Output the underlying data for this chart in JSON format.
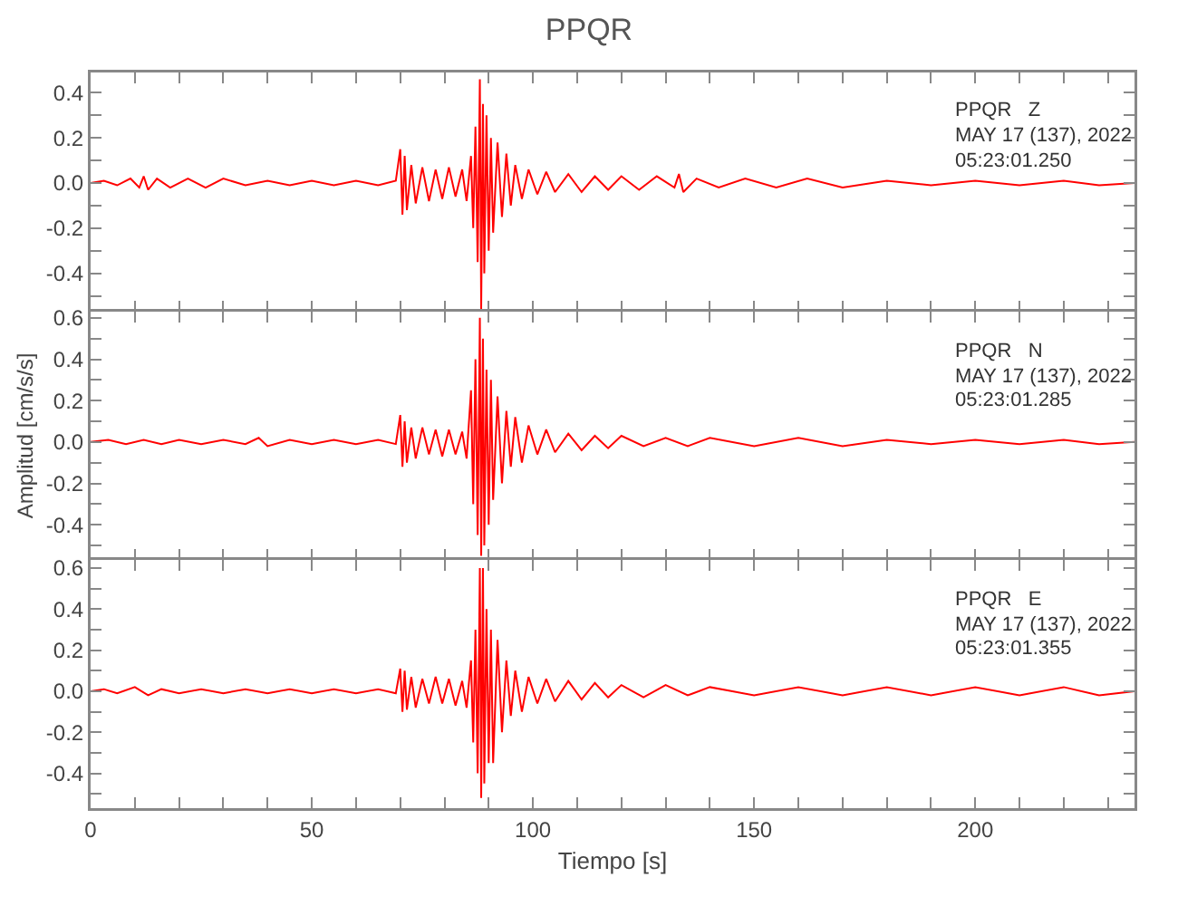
{
  "chart_data": [
    {
      "type": "line",
      "title": "PPQR",
      "annotations": [
        "PPQR   Z",
        "MAY 17 (137), 2022",
        "05:23:01.250"
      ],
      "tick_labels": "y",
      "xlim": [
        0,
        236
      ],
      "xticks": [
        {
          "value": 0,
          "label": null
        },
        {
          "value": 10,
          "label": null
        },
        {
          "value": 20,
          "label": null
        },
        {
          "value": 30,
          "label": null
        },
        {
          "value": 40,
          "label": null
        },
        {
          "value": 50,
          "label": null
        },
        {
          "value": 60,
          "label": null
        },
        {
          "value": 70,
          "label": null
        },
        {
          "value": 80,
          "label": null
        },
        {
          "value": 90,
          "label": null
        },
        {
          "value": 100,
          "label": null
        },
        {
          "value": 110,
          "label": null
        },
        {
          "value": 120,
          "label": null
        },
        {
          "value": 130,
          "label": null
        },
        {
          "value": 140,
          "label": null
        },
        {
          "value": 150,
          "label": null
        },
        {
          "value": 160,
          "label": null
        },
        {
          "value": 170,
          "label": null
        },
        {
          "value": 180,
          "label": null
        },
        {
          "value": 190,
          "label": null
        },
        {
          "value": 200,
          "label": null
        },
        {
          "value": 210,
          "label": null
        },
        {
          "value": 220,
          "label": null
        },
        {
          "value": 230,
          "label": null
        }
      ],
      "ylim": [
        -0.57,
        0.49
      ],
      "yticks": [
        {
          "value": -0.5,
          "label": null
        },
        -0.4,
        {
          "value": -0.3,
          "label": null
        },
        -0.2,
        {
          "value": -0.1,
          "label": null
        },
        {
          "value": 0,
          "label": "0.0"
        },
        {
          "value": 0.1,
          "label": null
        },
        0.2,
        {
          "value": 0.3,
          "label": null
        },
        0.4
      ],
      "series": [
        {
          "color": "#ff0000",
          "x": [
            0,
            3,
            6,
            9,
            11,
            12,
            13,
            15,
            18,
            22,
            26,
            30,
            35,
            40,
            45,
            50,
            55,
            60,
            65,
            69,
            70,
            70.5,
            71,
            71.5,
            72.5,
            73.5,
            75,
            76.5,
            78,
            79.5,
            81,
            82.5,
            84,
            85,
            86,
            86.5,
            87,
            87.5,
            88,
            88.3,
            88.7,
            89,
            89.5,
            90,
            90.5,
            91,
            92,
            93,
            94,
            95,
            96,
            97.5,
            99,
            101,
            103,
            105,
            108,
            111,
            114,
            117,
            120,
            124,
            128,
            132,
            133,
            134,
            137,
            142,
            148,
            155,
            162,
            170,
            180,
            190,
            200,
            210,
            220,
            228,
            236
          ],
          "values": [
            0,
            0.01,
            -0.01,
            0.02,
            -0.02,
            0.03,
            -0.03,
            0.02,
            -0.02,
            0.02,
            -0.02,
            0.02,
            -0.01,
            0.01,
            -0.01,
            0.01,
            -0.01,
            0.01,
            -0.01,
            0.01,
            0.15,
            -0.14,
            0.12,
            -0.12,
            0.08,
            -0.09,
            0.07,
            -0.08,
            0.06,
            -0.07,
            0.07,
            -0.06,
            0.06,
            -0.08,
            0.12,
            -0.2,
            0.25,
            -0.35,
            0.46,
            -0.56,
            0.35,
            -0.4,
            0.3,
            -0.3,
            0.2,
            -0.22,
            0.18,
            -0.15,
            0.13,
            -0.1,
            0.08,
            -0.07,
            0.06,
            -0.05,
            0.05,
            -0.04,
            0.04,
            -0.04,
            0.03,
            -0.03,
            0.03,
            -0.03,
            0.03,
            -0.02,
            0.04,
            -0.04,
            0.02,
            -0.02,
            0.02,
            -0.02,
            0.02,
            -0.02,
            0.01,
            -0.01,
            0.01,
            -0.01,
            0.01,
            -0.01,
            0
          ]
        }
      ]
    },
    {
      "type": "line",
      "ylabel": "Amplitud [cm/s/s]",
      "annotations": [
        "PPQR   N",
        "MAY 17 (137), 2022",
        "05:23:01.285"
      ],
      "tick_labels": "y",
      "xlim": [
        0,
        236
      ],
      "xticks": [
        {
          "value": 0,
          "label": null
        },
        {
          "value": 10,
          "label": null
        },
        {
          "value": 20,
          "label": null
        },
        {
          "value": 30,
          "label": null
        },
        {
          "value": 40,
          "label": null
        },
        {
          "value": 50,
          "label": null
        },
        {
          "value": 60,
          "label": null
        },
        {
          "value": 70,
          "label": null
        },
        {
          "value": 80,
          "label": null
        },
        {
          "value": 90,
          "label": null
        },
        {
          "value": 100,
          "label": null
        },
        {
          "value": 110,
          "label": null
        },
        {
          "value": 120,
          "label": null
        },
        {
          "value": 130,
          "label": null
        },
        {
          "value": 140,
          "label": null
        },
        {
          "value": 150,
          "label": null
        },
        {
          "value": 160,
          "label": null
        },
        {
          "value": 170,
          "label": null
        },
        {
          "value": 180,
          "label": null
        },
        {
          "value": 190,
          "label": null
        },
        {
          "value": 200,
          "label": null
        },
        {
          "value": 210,
          "label": null
        },
        {
          "value": 220,
          "label": null
        },
        {
          "value": 230,
          "label": null
        }
      ],
      "ylim": [
        -0.57,
        0.63
      ],
      "yticks": [
        {
          "value": -0.5,
          "label": null
        },
        -0.4,
        {
          "value": -0.3,
          "label": null
        },
        -0.2,
        {
          "value": -0.1,
          "label": null
        },
        {
          "value": 0,
          "label": "0.0"
        },
        {
          "value": 0.1,
          "label": null
        },
        0.2,
        {
          "value": 0.3,
          "label": null
        },
        0.4,
        {
          "value": 0.5,
          "label": null
        },
        0.6
      ],
      "series": [
        {
          "color": "#ff0000",
          "x": [
            0,
            4,
            8,
            12,
            16,
            20,
            25,
            30,
            35,
            38,
            40,
            45,
            50,
            55,
            60,
            65,
            69,
            70,
            70.5,
            71,
            71.5,
            72.5,
            73.5,
            75,
            76.5,
            78,
            79.5,
            81,
            82.5,
            84,
            85,
            86,
            86.5,
            87,
            87.5,
            88,
            88.3,
            88.7,
            89,
            89.5,
            90,
            90.5,
            91,
            92,
            93,
            94,
            95,
            96,
            97.5,
            99,
            101,
            103,
            105,
            108,
            111,
            114,
            117,
            120,
            125,
            130,
            135,
            140,
            150,
            160,
            170,
            180,
            190,
            200,
            210,
            220,
            228,
            236
          ],
          "values": [
            0,
            0.01,
            -0.01,
            0.01,
            -0.01,
            0.01,
            -0.01,
            0.01,
            -0.01,
            0.02,
            -0.02,
            0.01,
            -0.01,
            0.01,
            -0.01,
            0.01,
            -0.01,
            0.13,
            -0.12,
            0.1,
            -0.1,
            0.07,
            -0.08,
            0.07,
            -0.06,
            0.06,
            -0.07,
            0.06,
            -0.06,
            0.05,
            -0.08,
            0.25,
            -0.3,
            0.4,
            -0.45,
            0.6,
            -0.55,
            0.5,
            -0.5,
            0.35,
            -0.4,
            0.3,
            -0.28,
            0.22,
            -0.2,
            0.15,
            -0.12,
            0.12,
            -0.1,
            0.08,
            -0.06,
            0.06,
            -0.05,
            0.04,
            -0.04,
            0.03,
            -0.03,
            0.03,
            -0.02,
            0.02,
            -0.02,
            0.02,
            -0.02,
            0.02,
            -0.02,
            0.01,
            -0.01,
            0.01,
            -0.01,
            0.01,
            -0.01,
            0
          ]
        }
      ]
    },
    {
      "type": "line",
      "xlabel": "Tiempo [s]",
      "annotations": [
        "PPQR   E",
        "MAY 17 (137), 2022",
        "05:23:01.355"
      ],
      "xlim": [
        0,
        236
      ],
      "xticks": [
        0,
        {
          "value": 10,
          "label": null
        },
        {
          "value": 20,
          "label": null
        },
        {
          "value": 30,
          "label": null
        },
        {
          "value": 40,
          "label": null
        },
        50,
        {
          "value": 60,
          "label": null
        },
        {
          "value": 70,
          "label": null
        },
        {
          "value": 80,
          "label": null
        },
        {
          "value": 90,
          "label": null
        },
        100,
        {
          "value": 110,
          "label": null
        },
        {
          "value": 120,
          "label": null
        },
        {
          "value": 130,
          "label": null
        },
        {
          "value": 140,
          "label": null
        },
        150,
        {
          "value": 160,
          "label": null
        },
        {
          "value": 170,
          "label": null
        },
        {
          "value": 180,
          "label": null
        },
        {
          "value": 190,
          "label": null
        },
        200,
        {
          "value": 210,
          "label": null
        },
        {
          "value": 220,
          "label": null
        },
        {
          "value": 230,
          "label": null
        }
      ],
      "ylim": [
        -0.57,
        0.64
      ],
      "yticks": [
        {
          "value": -0.5,
          "label": null
        },
        -0.4,
        {
          "value": -0.3,
          "label": null
        },
        -0.2,
        {
          "value": -0.1,
          "label": null
        },
        {
          "value": 0,
          "label": "0.0"
        },
        {
          "value": 0.1,
          "label": null
        },
        0.2,
        {
          "value": 0.3,
          "label": null
        },
        0.4,
        {
          "value": 0.5,
          "label": null
        },
        0.6
      ],
      "series": [
        {
          "color": "#ff0000",
          "x": [
            0,
            3,
            6,
            10,
            13,
            16,
            20,
            25,
            30,
            35,
            40,
            45,
            50,
            55,
            60,
            65,
            69,
            70,
            70.5,
            71,
            71.5,
            72.5,
            73.5,
            75,
            76.5,
            78,
            79.5,
            81,
            82.5,
            84,
            85,
            86,
            86.5,
            87,
            87.5,
            88,
            88.3,
            88.7,
            89,
            89.5,
            90,
            90.5,
            91,
            92,
            93,
            94,
            95,
            96,
            97.5,
            99,
            101,
            103,
            105,
            108,
            111,
            114,
            117,
            120,
            125,
            130,
            135,
            140,
            150,
            160,
            170,
            180,
            190,
            200,
            210,
            220,
            228,
            236
          ],
          "values": [
            0,
            0.01,
            -0.01,
            0.02,
            -0.02,
            0.01,
            -0.01,
            0.01,
            -0.01,
            0.01,
            -0.01,
            0.01,
            -0.01,
            0.01,
            -0.01,
            0.01,
            -0.01,
            0.11,
            -0.1,
            0.1,
            -0.09,
            0.07,
            -0.08,
            0.06,
            -0.06,
            0.07,
            -0.06,
            0.06,
            -0.07,
            0.05,
            -0.08,
            0.15,
            -0.25,
            0.3,
            -0.4,
            0.6,
            -0.52,
            0.6,
            -0.45,
            0.4,
            -0.35,
            0.3,
            -0.35,
            0.25,
            -0.2,
            0.15,
            -0.12,
            0.1,
            -0.1,
            0.07,
            -0.06,
            0.06,
            -0.05,
            0.05,
            -0.04,
            0.04,
            -0.03,
            0.03,
            -0.03,
            0.03,
            -0.02,
            0.02,
            -0.02,
            0.02,
            -0.02,
            0.02,
            -0.02,
            0.02,
            -0.02,
            0.02,
            -0.02,
            0
          ]
        }
      ]
    }
  ]
}
